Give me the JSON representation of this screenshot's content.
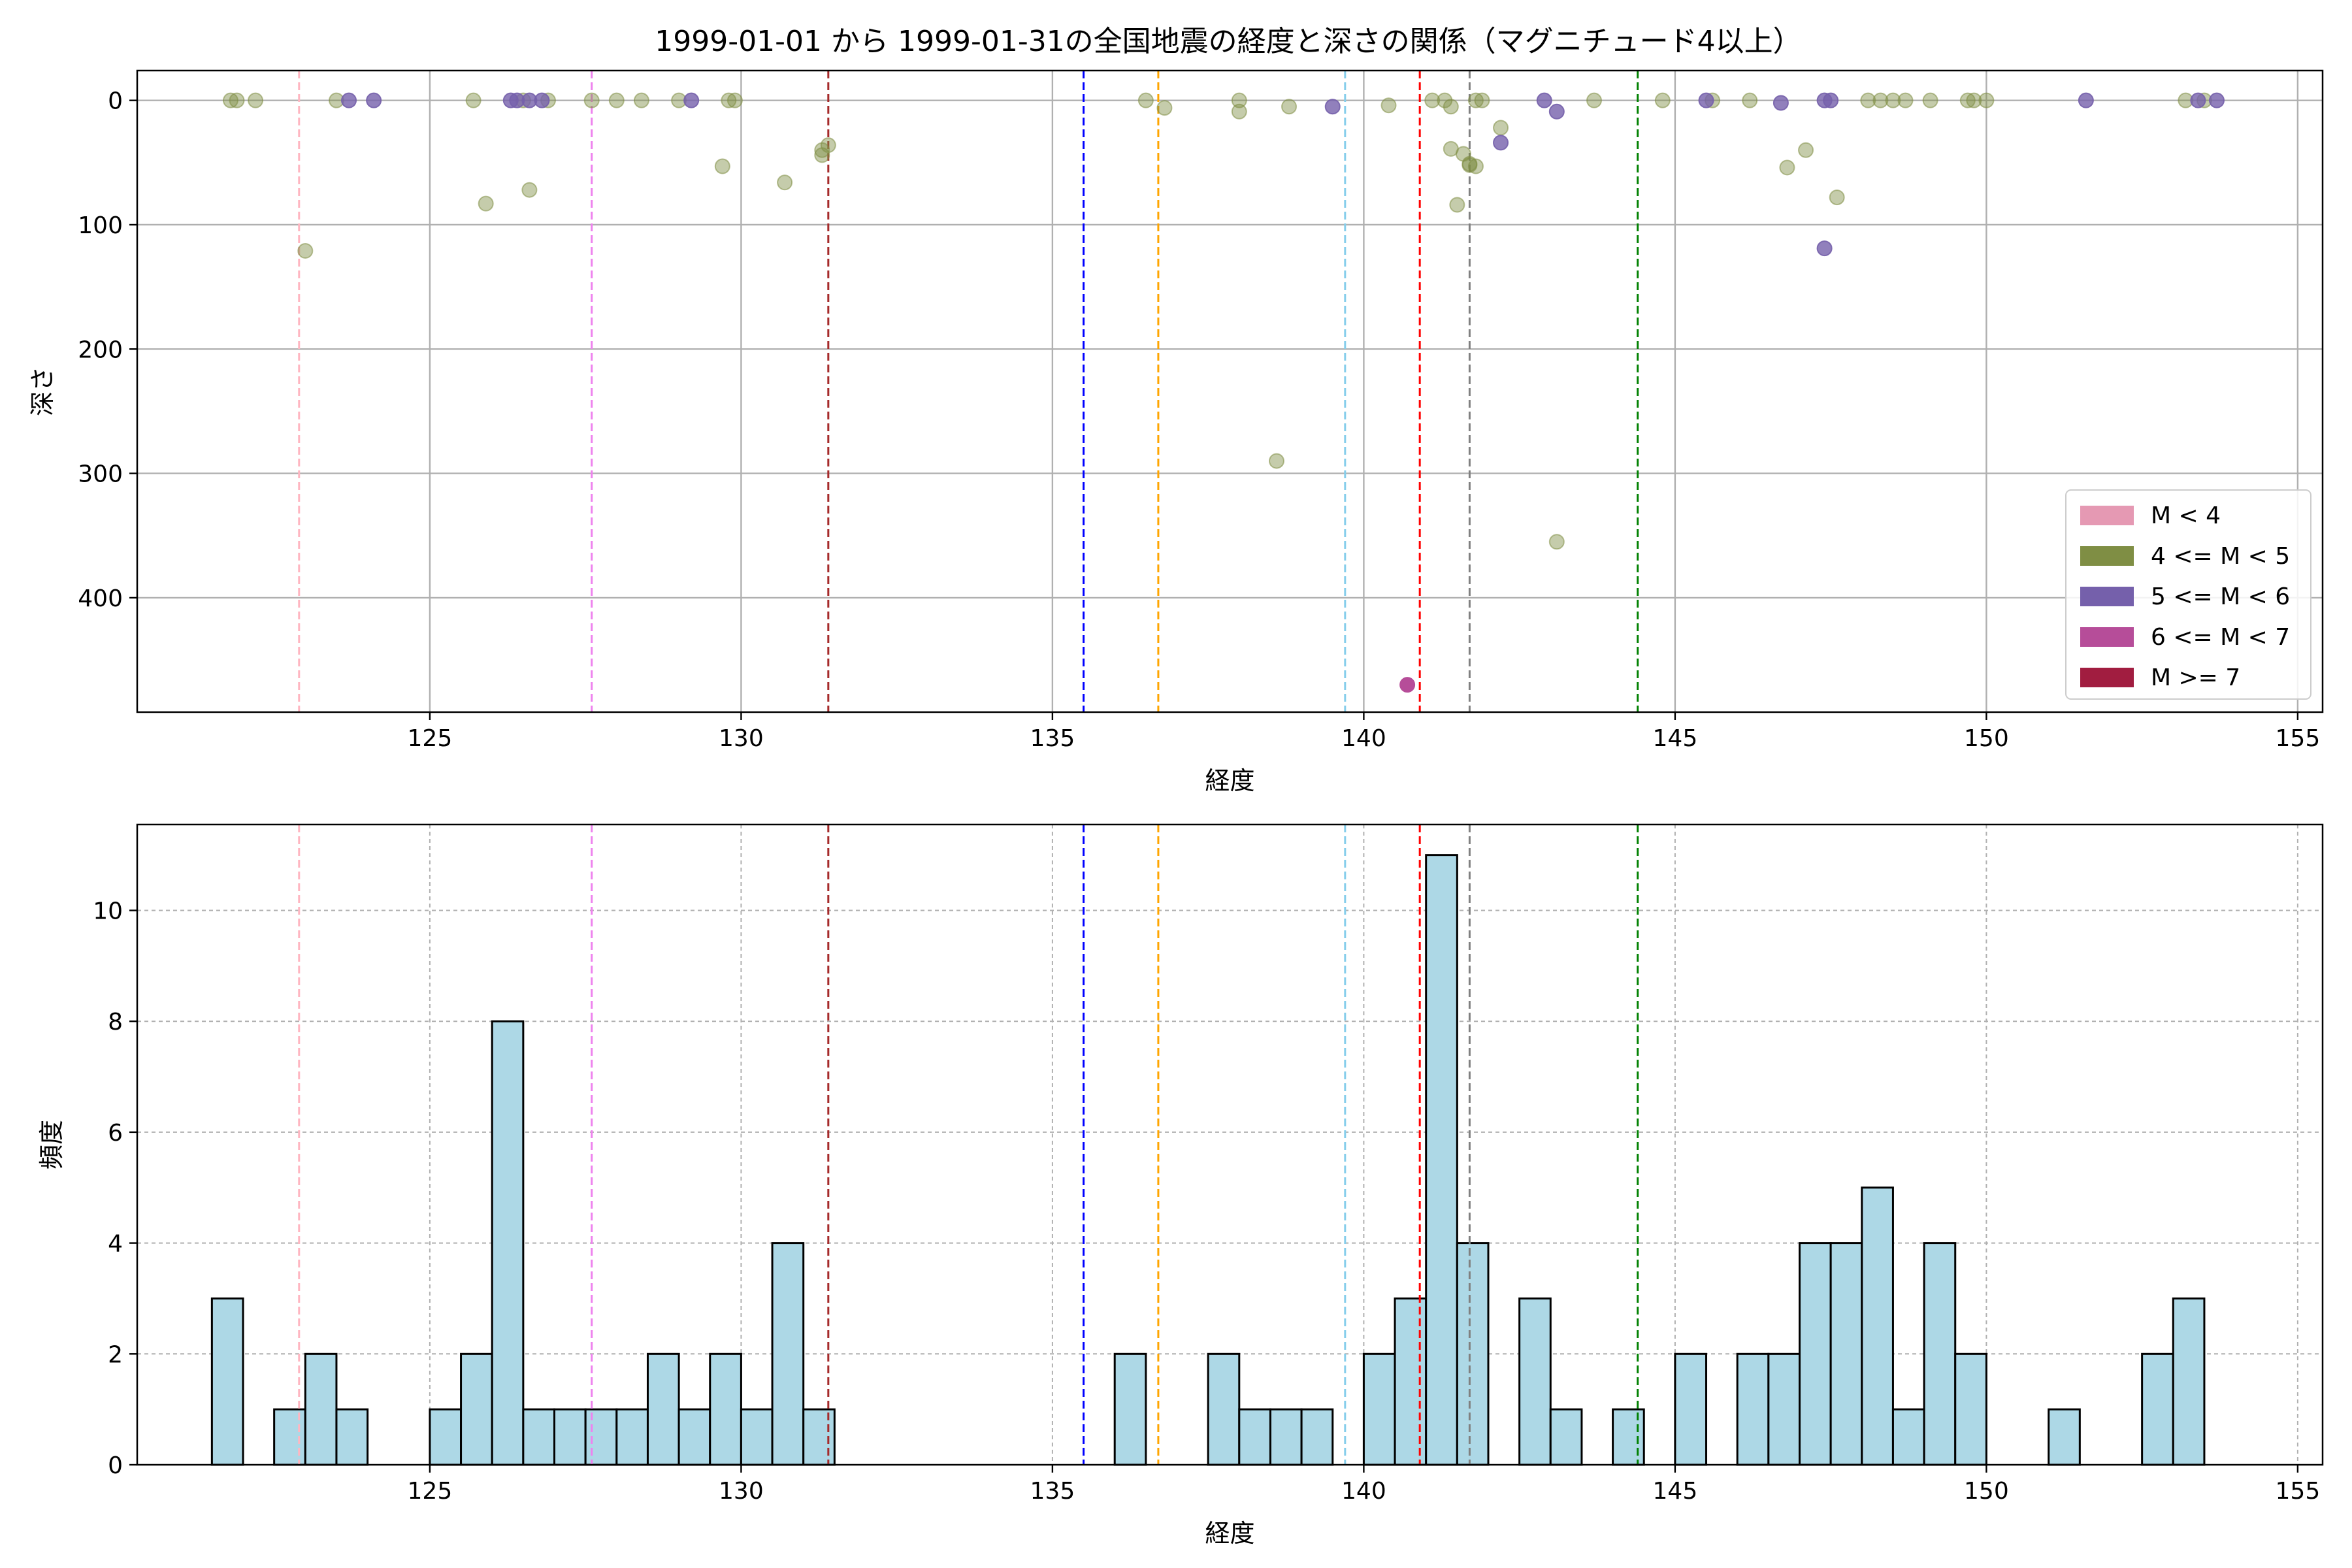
{
  "title": "1999-01-01 から 1999-01-31の全国地震の経度と深さの関係（マグニチュード4以上）",
  "colors": {
    "m_lt4": "#e599b3",
    "m_4_5": "#7f8e44",
    "m_5_6": "#7560ab",
    "m_6_7": "#b64d99",
    "m_ge7": "#a11d40",
    "hist_fill": "#add8e6"
  },
  "chart_data": [
    {
      "type": "scatter",
      "xlabel": "経度",
      "ylabel": "深さ",
      "xlim": [
        120.3,
        155.4
      ],
      "ylim": [
        492,
        -24
      ],
      "y_inverted": true,
      "grid": true,
      "xticks": [
        125,
        130,
        135,
        140,
        145,
        150,
        155
      ],
      "yticks": [
        0,
        100,
        200,
        300,
        400
      ],
      "legend_position": "lower-right",
      "legend": [
        {
          "label": "M < 4",
          "color": "#e599b3"
        },
        {
          "label": "4 <= M < 5",
          "color": "#7f8e44"
        },
        {
          "label": "5 <= M < 6",
          "color": "#7560ab"
        },
        {
          "label": "6 <= M < 7",
          "color": "#b64d99"
        },
        {
          "label": "M >= 7",
          "color": "#a11d40"
        }
      ],
      "vlines": [
        {
          "x": 122.9,
          "color": "#ffb6c1"
        },
        {
          "x": 127.6,
          "color": "#ee82ee"
        },
        {
          "x": 131.4,
          "color": "#a52a2a"
        },
        {
          "x": 135.5,
          "color": "#0000ff"
        },
        {
          "x": 136.7,
          "color": "#ffa500"
        },
        {
          "x": 139.7,
          "color": "#87ceeb"
        },
        {
          "x": 140.9,
          "color": "#ff0000"
        },
        {
          "x": 141.7,
          "color": "#808080"
        },
        {
          "x": 144.4,
          "color": "#008000"
        }
      ],
      "series": [
        {
          "name": "4 <= M < 5",
          "color": "#7f8e44",
          "alpha": 0.45,
          "points": [
            [
              121.8,
              0
            ],
            [
              121.9,
              0
            ],
            [
              122.2,
              0
            ],
            [
              123.0,
              121
            ],
            [
              123.5,
              0
            ],
            [
              125.7,
              0
            ],
            [
              125.9,
              83
            ],
            [
              126.5,
              0
            ],
            [
              126.6,
              72
            ],
            [
              126.9,
              0
            ],
            [
              127.6,
              0
            ],
            [
              128.0,
              0
            ],
            [
              128.4,
              0
            ],
            [
              129.0,
              0
            ],
            [
              129.7,
              53
            ],
            [
              129.8,
              0
            ],
            [
              129.9,
              0
            ],
            [
              130.7,
              66
            ],
            [
              131.3,
              40
            ],
            [
              131.4,
              36
            ],
            [
              131.3,
              44
            ],
            [
              136.5,
              0
            ],
            [
              136.8,
              6
            ],
            [
              138.0,
              0
            ],
            [
              138.0,
              9
            ],
            [
              138.6,
              290
            ],
            [
              138.8,
              5
            ],
            [
              140.4,
              4
            ],
            [
              141.1,
              0
            ],
            [
              141.3,
              0
            ],
            [
              141.4,
              5
            ],
            [
              141.4,
              39
            ],
            [
              141.5,
              84
            ],
            [
              141.6,
              43
            ],
            [
              141.7,
              51
            ],
            [
              141.7,
              52
            ],
            [
              141.8,
              0
            ],
            [
              141.8,
              53
            ],
            [
              141.9,
              0
            ],
            [
              142.2,
              22
            ],
            [
              143.1,
              355
            ],
            [
              143.7,
              0
            ],
            [
              144.8,
              0
            ],
            [
              145.6,
              0
            ],
            [
              146.2,
              0
            ],
            [
              146.8,
              54
            ],
            [
              147.1,
              40
            ],
            [
              147.6,
              78
            ],
            [
              148.1,
              0
            ],
            [
              148.3,
              0
            ],
            [
              148.5,
              0
            ],
            [
              148.7,
              0
            ],
            [
              149.1,
              0
            ],
            [
              149.7,
              0
            ],
            [
              149.8,
              0
            ],
            [
              150.0,
              0
            ],
            [
              153.2,
              0
            ],
            [
              153.5,
              0
            ]
          ]
        },
        {
          "name": "5 <= M < 6",
          "color": "#7560ab",
          "alpha": 0.8,
          "points": [
            [
              123.7,
              0
            ],
            [
              124.1,
              0
            ],
            [
              126.3,
              0
            ],
            [
              126.4,
              0
            ],
            [
              126.6,
              0
            ],
            [
              126.8,
              0
            ],
            [
              129.2,
              0
            ],
            [
              139.5,
              5
            ],
            [
              142.2,
              34
            ],
            [
              142.9,
              0
            ],
            [
              143.1,
              9
            ],
            [
              145.5,
              0
            ],
            [
              146.7,
              2
            ],
            [
              147.4,
              119
            ],
            [
              147.4,
              0
            ],
            [
              147.5,
              0
            ],
            [
              151.6,
              0
            ],
            [
              153.4,
              0
            ],
            [
              153.7,
              0
            ]
          ]
        },
        {
          "name": "6 <= M < 7",
          "color": "#b64d99",
          "alpha": 1.0,
          "points": [
            [
              140.7,
              470
            ]
          ]
        }
      ]
    },
    {
      "type": "bar",
      "subtype": "histogram",
      "xlabel": "経度",
      "ylabel": "頻度",
      "xlim": [
        120.3,
        155.4
      ],
      "ylim": [
        0,
        11.55
      ],
      "grid": true,
      "xticks": [
        125,
        130,
        135,
        140,
        145,
        150,
        155
      ],
      "yticks": [
        0,
        2,
        4,
        6,
        8,
        10
      ],
      "bin_width": 0.5,
      "bins": [
        [
          121.75,
          3
        ],
        [
          122.75,
          1
        ],
        [
          123.25,
          2
        ],
        [
          123.75,
          1
        ],
        [
          125.25,
          1
        ],
        [
          125.75,
          2
        ],
        [
          126.25,
          8
        ],
        [
          126.75,
          1
        ],
        [
          127.25,
          1
        ],
        [
          127.75,
          1
        ],
        [
          128.25,
          1
        ],
        [
          128.75,
          2
        ],
        [
          129.25,
          1
        ],
        [
          129.75,
          2
        ],
        [
          130.25,
          1
        ],
        [
          130.75,
          4
        ],
        [
          131.25,
          1
        ],
        [
          136.25,
          2
        ],
        [
          137.75,
          2
        ],
        [
          138.25,
          1
        ],
        [
          138.75,
          1
        ],
        [
          139.25,
          1
        ],
        [
          140.25,
          2
        ],
        [
          140.75,
          3
        ],
        [
          141.25,
          11
        ],
        [
          141.75,
          4
        ],
        [
          142.75,
          3
        ],
        [
          143.25,
          1
        ],
        [
          144.25,
          1
        ],
        [
          145.25,
          2
        ],
        [
          146.25,
          2
        ],
        [
          146.75,
          2
        ],
        [
          147.25,
          4
        ],
        [
          147.75,
          4
        ],
        [
          148.25,
          5
        ],
        [
          148.75,
          1
        ],
        [
          149.25,
          4
        ],
        [
          149.75,
          2
        ],
        [
          151.25,
          1
        ],
        [
          152.75,
          2
        ],
        [
          153.25,
          3
        ]
      ],
      "vlines": [
        {
          "x": 122.9,
          "color": "#ffb6c1"
        },
        {
          "x": 127.6,
          "color": "#ee82ee"
        },
        {
          "x": 131.4,
          "color": "#a52a2a"
        },
        {
          "x": 135.5,
          "color": "#0000ff"
        },
        {
          "x": 136.7,
          "color": "#ffa500"
        },
        {
          "x": 139.7,
          "color": "#87ceeb"
        },
        {
          "x": 140.9,
          "color": "#ff0000"
        },
        {
          "x": 141.7,
          "color": "#808080"
        },
        {
          "x": 144.4,
          "color": "#008000"
        }
      ]
    }
  ]
}
